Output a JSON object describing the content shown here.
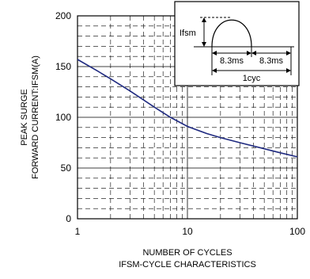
{
  "chart_data": {
    "type": "line",
    "title": "IFSM-CYCLE CHARACTERISTICS",
    "xlabel": "NUMBER OF CYCLES",
    "ylabel": [
      "PEAK SURGE",
      "FORWARD CURRENT:IFSM(A)"
    ],
    "x_scale": "log",
    "xlim": [
      1,
      100
    ],
    "ylim": [
      0,
      200
    ],
    "x_ticks": [
      "1",
      "10",
      "100"
    ],
    "y_ticks": [
      "0",
      "50",
      "100",
      "150",
      "200"
    ],
    "grid": true,
    "series": [
      {
        "x": [
          1,
          1.5,
          2,
          3,
          4,
          5,
          7,
          10,
          15,
          20,
          30,
          50,
          70,
          100
        ],
        "y": [
          157,
          146,
          138,
          126,
          117,
          110,
          100,
          91,
          84,
          80,
          75,
          69,
          65,
          61
        ]
      }
    ],
    "colors": {
      "line": "#1f2a80",
      "grid": "#000000"
    },
    "inset": {
      "ifsm_label": "Ifsm",
      "half_cycle_label": "8.3ms",
      "half_cycle_label_2": "8.3ms",
      "cycle_label": "1cyc"
    }
  }
}
